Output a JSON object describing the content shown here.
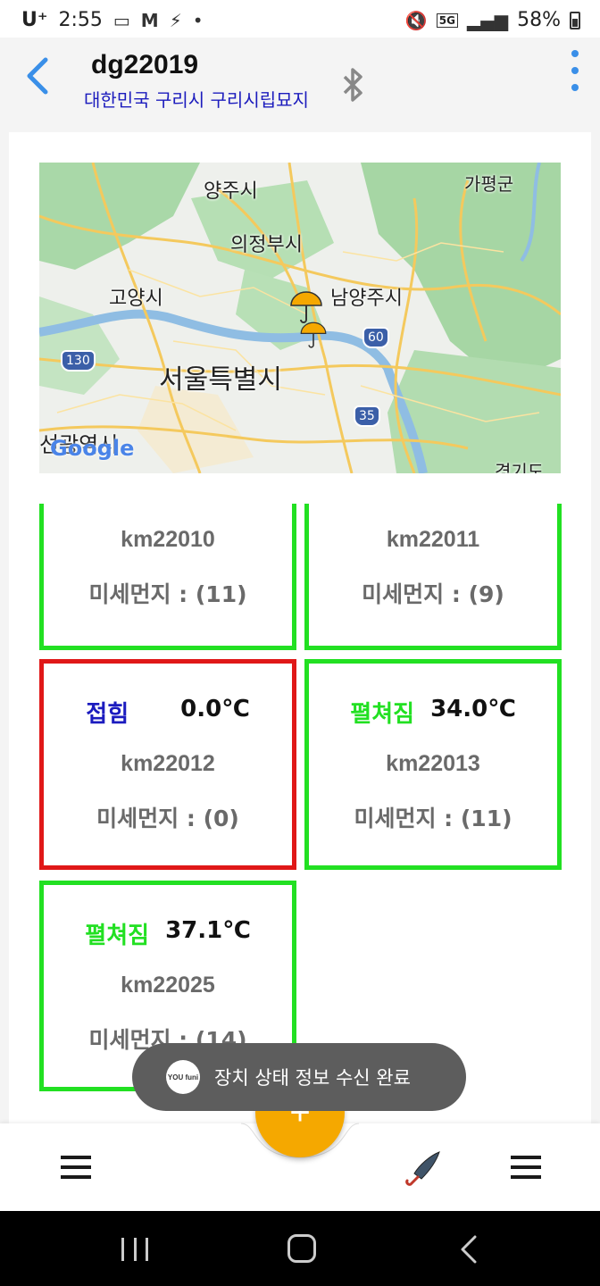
{
  "status_bar": {
    "carrier": "U⁺",
    "time": "2:55",
    "network": "5G",
    "battery": "58%"
  },
  "header": {
    "title": "dg22019",
    "location": "대한민국 구리시 구리시립묘지"
  },
  "map": {
    "labels": {
      "yangju": "양주시",
      "gapyeong": "가평군",
      "uijeongbu": "의정부시",
      "goyang": "고양시",
      "namyangju": "남양주시",
      "seoul": "서울특별시",
      "partial_bottom_left": "선광역시",
      "partial_bottom_right": "경기도"
    },
    "route_shields": [
      "130",
      "60",
      "35"
    ],
    "google_logo": "Google"
  },
  "devices": [
    {
      "id": "km22010",
      "dust": "미세먼지 : (11)",
      "state": "",
      "temp": "",
      "color": "#22e022"
    },
    {
      "id": "km22011",
      "dust": "미세먼지 : (9)",
      "state": "",
      "temp": "",
      "color": "#22e022"
    },
    {
      "id": "km22012",
      "dust": "미세먼지 : (0)",
      "state": "접힘",
      "temp": "0.0℃",
      "color": "#e01818"
    },
    {
      "id": "km22013",
      "dust": "미세먼지 : (11)",
      "state": "펼쳐짐",
      "temp": "34.0℃",
      "color": "#22e022"
    },
    {
      "id": "km22025",
      "dust": "미세먼지 : (14)",
      "state": "펼쳐짐",
      "temp": "37.1℃",
      "color": "#22e022"
    }
  ],
  "toast": {
    "logo_text": "YOU funi",
    "message": "장치 상태 정보 수신 완료"
  },
  "fab": {
    "label": "+"
  },
  "colors": {
    "accent_blue": "#3a8fe8",
    "open_green": "#22e022",
    "closed_blue": "#1c1cbf",
    "alert_red": "#e01818",
    "fab_orange": "#f5a800"
  }
}
